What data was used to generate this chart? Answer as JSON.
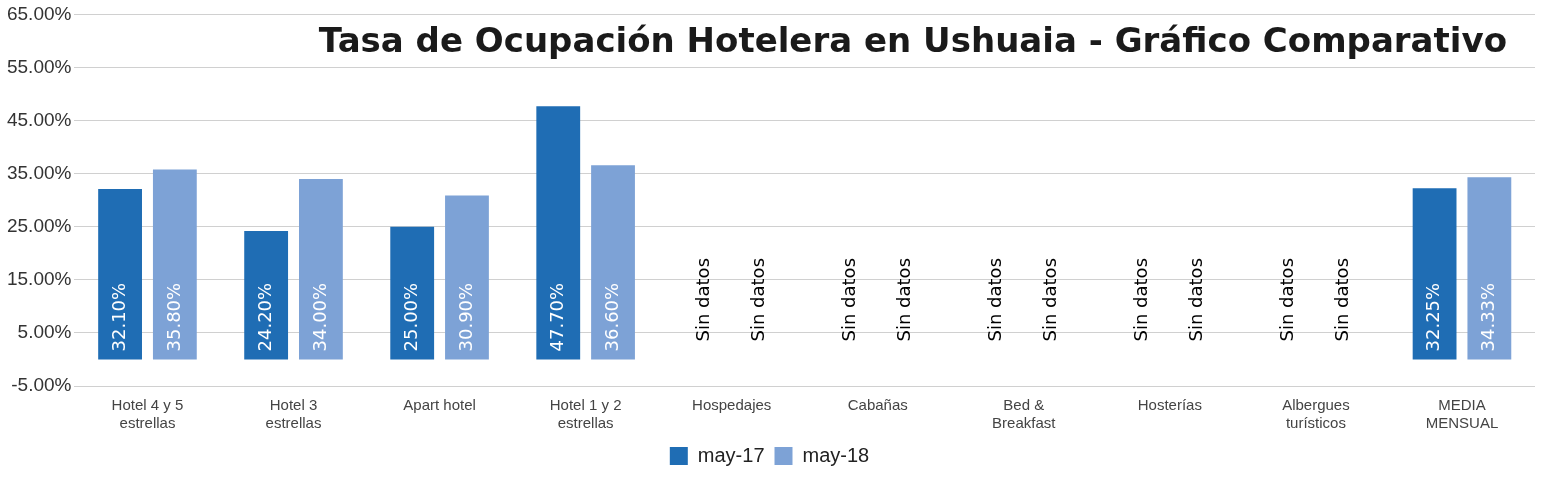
{
  "chart_data": {
    "type": "bar",
    "title": "Tasa de  Ocupación Hotelera en Ushuaia - Gráfico Comparativo",
    "categories": [
      "Hotel 4 y 5 estrellas",
      "Hotel 3 estrellas",
      "Apart hotel",
      "Hotel 1 y 2 estrellas",
      "Hospedajes",
      "Cabañas",
      "Bed & Breakfast",
      "Hosterías",
      "Albergues turísticos",
      "MEDIA MENSUAL"
    ],
    "series": [
      {
        "name": "may-17",
        "color": "#1f6db4",
        "values": [
          32.1,
          24.2,
          25.0,
          47.7,
          null,
          null,
          null,
          null,
          null,
          32.25
        ],
        "value_labels": [
          "32.10%",
          "24.20%",
          "25.00%",
          "47.70%",
          "Sin datos",
          "Sin datos",
          "Sin datos",
          "Sin datos",
          "Sin datos",
          "32.25%"
        ]
      },
      {
        "name": "may-18",
        "color": "#7da2d6",
        "values": [
          35.8,
          34.0,
          30.9,
          36.6,
          null,
          null,
          null,
          null,
          null,
          34.33
        ],
        "value_labels": [
          "35.80%",
          "34.00%",
          "30.90%",
          "36.60%",
          "Sin datos",
          "Sin datos",
          "Sin datos",
          "Sin datos",
          "Sin datos",
          "34.33%"
        ]
      }
    ],
    "ylim": [
      -5,
      65
    ],
    "yticks": [
      {
        "value": -5,
        "label": "-5.00%"
      },
      {
        "value": 5,
        "label": "5.00%"
      },
      {
        "value": 15,
        "label": "15.00%"
      },
      {
        "value": 25,
        "label": "25.00%"
      },
      {
        "value": 35,
        "label": "35.00%"
      },
      {
        "value": 45,
        "label": "45.00%"
      },
      {
        "value": 55,
        "label": "55.00%"
      },
      {
        "value": 65,
        "label": "65.00%"
      }
    ],
    "grid": "y",
    "legend": "bottom"
  }
}
